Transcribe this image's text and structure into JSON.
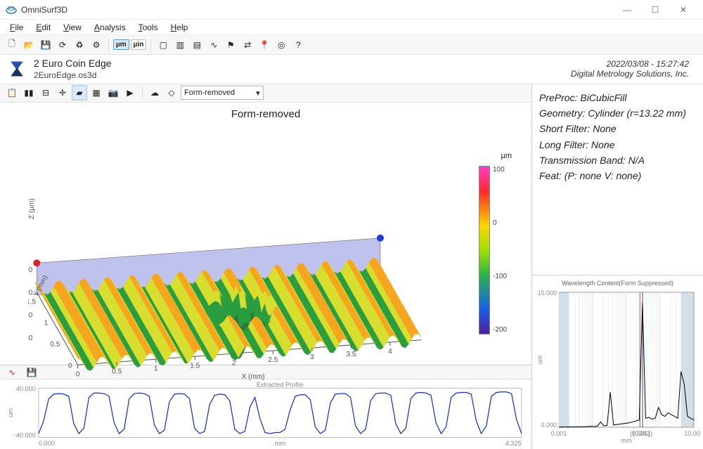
{
  "app": {
    "title": "OmniSurf3D"
  },
  "window_controls": {
    "min": "—",
    "max": "☐",
    "close": "✕"
  },
  "menu": [
    "File",
    "Edit",
    "View",
    "Analysis",
    "Tools",
    "Help"
  ],
  "toolbar1": {
    "icons": [
      {
        "name": "new-file-icon",
        "glyph": "🗋"
      },
      {
        "name": "open-file-icon",
        "glyph": "📂"
      },
      {
        "name": "save-icon",
        "glyph": "💾"
      },
      {
        "name": "refresh-icon",
        "glyph": "⟳"
      },
      {
        "name": "recycle-icon",
        "glyph": "♻"
      },
      {
        "name": "gear-icon",
        "glyph": "⚙"
      }
    ],
    "unit_um": "µm",
    "unit_uin": "µin",
    "icons2": [
      {
        "name": "window-icon",
        "glyph": "▢"
      },
      {
        "name": "chart-icon",
        "glyph": "▥"
      },
      {
        "name": "palette-icon",
        "glyph": "▤"
      },
      {
        "name": "wave-icon",
        "glyph": "∿"
      },
      {
        "name": "flag-icon",
        "glyph": "⚑"
      },
      {
        "name": "link-icon",
        "glyph": "⇄"
      },
      {
        "name": "marker-icon",
        "glyph": "📍"
      },
      {
        "name": "target-icon",
        "glyph": "◎"
      },
      {
        "name": "help-icon",
        "glyph": "?"
      }
    ]
  },
  "header": {
    "title": "2 Euro Coin Edge",
    "filename": "2EuroEdge.os3d",
    "timestamp": "2022/03/08 - 15:27:42",
    "company": "Digital Metrology Solutions, Inc."
  },
  "toolbar2": {
    "icons": [
      {
        "name": "copy-icon",
        "glyph": "📋"
      },
      {
        "name": "bars-icon",
        "glyph": "▮▮"
      },
      {
        "name": "tree-icon",
        "glyph": "⊟"
      },
      {
        "name": "axes-icon",
        "glyph": "✛"
      },
      {
        "name": "surface-icon",
        "glyph": "▰",
        "active": true
      },
      {
        "name": "grid-icon",
        "glyph": "▦"
      },
      {
        "name": "camera-icon",
        "glyph": "📷"
      },
      {
        "name": "play-icon",
        "glyph": "▶"
      }
    ],
    "icons_r": [
      {
        "name": "cloud-icon",
        "glyph": "☁"
      },
      {
        "name": "layer-icon",
        "glyph": "◇"
      }
    ],
    "dropdown_label": "Form-removed"
  },
  "info": {
    "preproc": "PreProc: BiCubicFill",
    "geometry": "Geometry: Cylinder (r=13.22 mm)",
    "short_filter": "Short Filter: None",
    "long_filter": "Long Filter: None",
    "band": "Transmission Band: N/A",
    "feat": "Feat: (P: none   V: none)"
  },
  "plot3d": {
    "title": "Form-removed",
    "x_label": "X (mm)",
    "y_label": "Y (mm)",
    "z_label": "Z (µm)",
    "x_ticks": [
      "0",
      "0.5",
      "1",
      "1.5",
      "2",
      "2.5",
      "3",
      "3.5",
      "4"
    ],
    "y_ticks": [
      "0",
      "0.5",
      "1",
      "1.5"
    ],
    "z_ticks": [
      "100",
      "-0",
      "-100",
      "-200"
    ],
    "surface_colors": {
      "low": "#2a9d3f",
      "mid": "#d8de2e",
      "high": "#f7a51e"
    },
    "backplane_fill": "#8a8fdf",
    "backplane_opacity": 0.55,
    "marker_left": "#d8272d",
    "marker_right": "#1c3fd8"
  },
  "colorbar": {
    "unit": "µm",
    "ticks": [
      "100",
      "0",
      "-100",
      "-200"
    ],
    "stops": [
      "#ff3cc6",
      "#ff2a2a",
      "#ffd400",
      "#9fe000",
      "#29b34a",
      "#1a60e6",
      "#4b1fa0"
    ]
  },
  "profile": {
    "title": "Extracted Profile",
    "y_ticks": [
      "40.000",
      "-40.000"
    ],
    "y_unit": "um",
    "x_unit": "mm",
    "x_range": [
      "0.000",
      "4.325"
    ],
    "line_color": "#1030c8",
    "data": [
      -38,
      -15,
      25,
      34,
      35,
      34,
      30,
      -20,
      -38,
      -28,
      28,
      36,
      36,
      35,
      30,
      -18,
      -38,
      -30,
      25,
      35,
      36,
      35,
      30,
      -22,
      -38,
      -32,
      20,
      34,
      35,
      34,
      26,
      -28,
      -38,
      -34,
      15,
      32,
      34,
      33,
      22,
      -30,
      -38,
      -34,
      10,
      28,
      -10,
      -36,
      -38,
      -36,
      -36,
      -30,
      5,
      30,
      33,
      33,
      24,
      -26,
      -38,
      -32,
      18,
      34,
      35,
      35,
      28,
      -24,
      -38,
      -30,
      22,
      35,
      36,
      36,
      32,
      -20,
      -38,
      -28,
      26,
      36,
      37,
      36,
      32,
      -18,
      -38,
      -26,
      28,
      36,
      37,
      37,
      34,
      -15,
      -38,
      -24,
      30,
      37,
      38,
      38,
      35,
      -12,
      -38
    ]
  },
  "bottom_toolbar": {
    "icons": [
      {
        "name": "wave2-icon",
        "glyph": "∿",
        "color": "#d8272d"
      },
      {
        "name": "save2-icon",
        "glyph": "💾"
      }
    ]
  },
  "wavelength": {
    "title": "Wavelength Content(Form Suppressed)",
    "y_label": "um",
    "y_ticks": [
      "15.000",
      "0.000"
    ],
    "x_label": "mm",
    "x_ticks": [
      "0.001",
      "(0.306)",
      "(0.313)",
      "10.000"
    ],
    "x_tick_colors": [
      "#555",
      "#d42",
      "#d42",
      "#555"
    ],
    "marker_line_colors": [
      "#d42",
      "#1752b8"
    ],
    "band_fill": "#cfe0ea",
    "line_color": "#000",
    "data": [
      0.02,
      0.03,
      0.02,
      0.04,
      0.03,
      0.05,
      0.04,
      0.06,
      0.05,
      0.08,
      0.1,
      0.08,
      0.12,
      0.6,
      0.15,
      0.2,
      3.9,
      0.25,
      0.3,
      0.35,
      0.4,
      0.45,
      0.5,
      0.6,
      0.7,
      0.8,
      13.8,
      1.0,
      1.1,
      0.9,
      1.0,
      2.2,
      1.4,
      1.2,
      1.6,
      1.4,
      1.2,
      1.0,
      6.2,
      4.8,
      1.2,
      1.0,
      0.8
    ]
  }
}
